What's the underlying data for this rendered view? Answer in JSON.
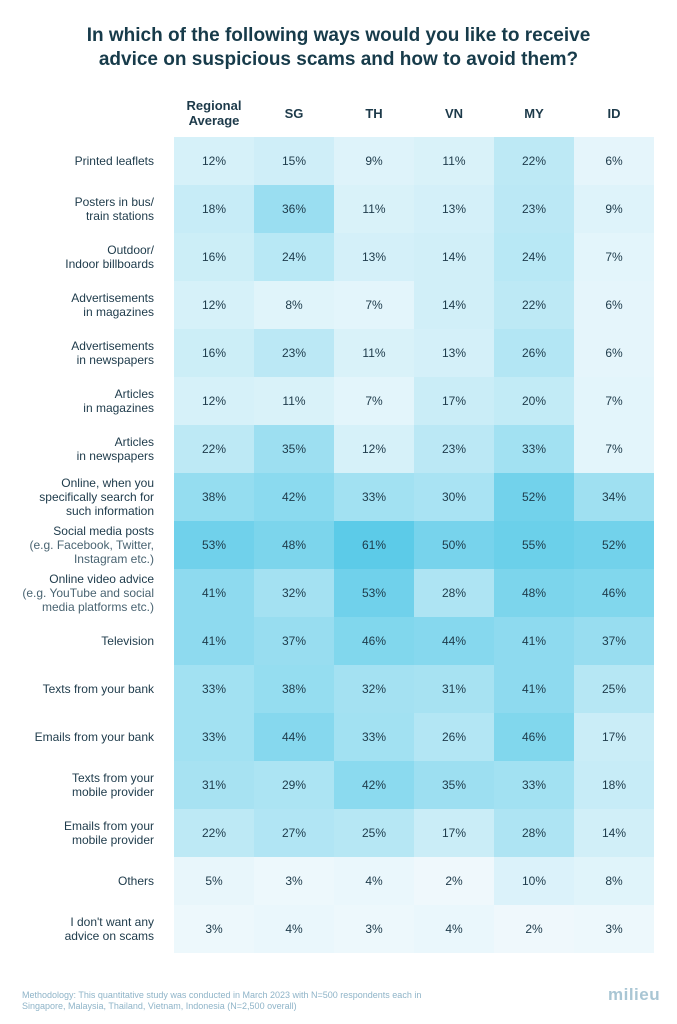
{
  "title": {
    "line1": "In which of the following ways would you like to receive",
    "line2": "advice on suspicious scams and how to avoid them?"
  },
  "chart_data": {
    "type": "table",
    "title": "In which of the following ways would you like to receive advice on suspicious scams and how to avoid them?",
    "columns": [
      [
        "Regional",
        "Average"
      ],
      [
        "SG"
      ],
      [
        "TH"
      ],
      [
        "VN"
      ],
      [
        "MY"
      ],
      [
        "ID"
      ]
    ],
    "rows": [
      {
        "label": [
          "Printed leaflets"
        ],
        "sub": [],
        "values": [
          12,
          15,
          9,
          11,
          22,
          6
        ]
      },
      {
        "label": [
          "Posters in bus/",
          "train stations"
        ],
        "sub": [],
        "values": [
          18,
          36,
          11,
          13,
          23,
          9
        ]
      },
      {
        "label": [
          "Outdoor/",
          "Indoor billboards"
        ],
        "sub": [],
        "values": [
          16,
          24,
          13,
          14,
          24,
          7
        ]
      },
      {
        "label": [
          "Advertisements",
          "in magazines"
        ],
        "sub": [],
        "values": [
          12,
          8,
          7,
          14,
          22,
          6
        ]
      },
      {
        "label": [
          "Advertisements",
          "in newspapers"
        ],
        "sub": [],
        "values": [
          16,
          23,
          11,
          13,
          26,
          6
        ]
      },
      {
        "label": [
          "Articles",
          "in magazines"
        ],
        "sub": [],
        "values": [
          12,
          11,
          7,
          17,
          20,
          7
        ]
      },
      {
        "label": [
          "Articles",
          "in newspapers"
        ],
        "sub": [],
        "values": [
          22,
          35,
          12,
          23,
          33,
          7
        ]
      },
      {
        "label": [
          "Online, when you",
          "specifically search for",
          "such information"
        ],
        "sub": [],
        "values": [
          38,
          42,
          33,
          30,
          52,
          34
        ]
      },
      {
        "label": [
          "Social media posts"
        ],
        "sub": [
          "(e.g. Facebook, Twitter,",
          "Instagram etc.)"
        ],
        "values": [
          53,
          48,
          61,
          50,
          55,
          52
        ]
      },
      {
        "label": [
          "Online video advice"
        ],
        "sub": [
          "(e.g. YouTube and social",
          "media platforms etc.)"
        ],
        "values": [
          41,
          32,
          53,
          28,
          48,
          46
        ]
      },
      {
        "label": [
          "Television"
        ],
        "sub": [],
        "values": [
          41,
          37,
          46,
          44,
          41,
          37
        ]
      },
      {
        "label": [
          "Texts from your bank"
        ],
        "sub": [],
        "values": [
          33,
          38,
          32,
          31,
          41,
          25
        ]
      },
      {
        "label": [
          "Emails from your bank"
        ],
        "sub": [],
        "values": [
          33,
          44,
          33,
          26,
          46,
          17
        ]
      },
      {
        "label": [
          "Texts from your",
          "mobile provider"
        ],
        "sub": [],
        "values": [
          31,
          29,
          42,
          35,
          33,
          18
        ]
      },
      {
        "label": [
          "Emails from your",
          "mobile provider"
        ],
        "sub": [],
        "values": [
          22,
          27,
          25,
          17,
          28,
          14
        ]
      },
      {
        "label": [
          "Others"
        ],
        "sub": [],
        "values": [
          5,
          3,
          4,
          2,
          10,
          8
        ]
      },
      {
        "label": [
          "I don't want any",
          "advice on scams"
        ],
        "sub": [],
        "values": [
          3,
          4,
          3,
          4,
          2,
          3
        ]
      }
    ],
    "value_suffix": "%",
    "color_scale": {
      "low": "#f4fafd",
      "high": "#5ccbe8",
      "min": 0,
      "max": 61
    }
  },
  "footer": {
    "line1": "Methodology: This quantitative study was conducted in March 2023 with N=500 respondents each in",
    "line2": "Singapore, Malaysia, Thailand, Vietnam, Indonesia (N=2,500 overall)"
  },
  "logo": "milieu"
}
